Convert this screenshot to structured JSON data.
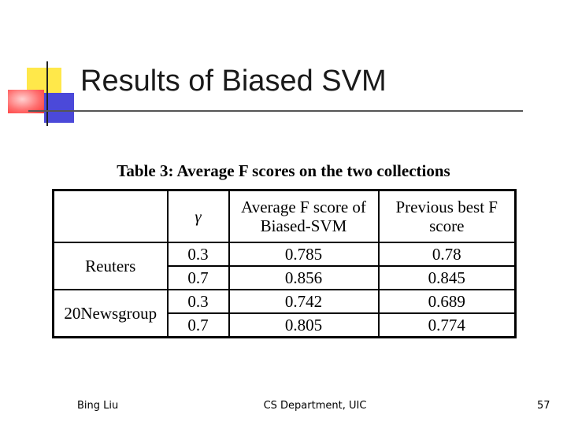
{
  "slide": {
    "title": "Results of Biased SVM"
  },
  "table": {
    "caption": "Table 3: Average F scores on the two collections",
    "headers": {
      "group": "",
      "gamma": "γ",
      "avg_f": "Average F score of Biased-SVM",
      "prev_best": "Previous best F score"
    },
    "groups": [
      {
        "name": "Reuters",
        "rows": [
          {
            "gamma": "0.3",
            "avg_f": "0.785",
            "prev_best": "0.78"
          },
          {
            "gamma": "0.7",
            "avg_f": "0.856",
            "prev_best": "0.845"
          }
        ]
      },
      {
        "name": "20Newsgroup",
        "rows": [
          {
            "gamma": "0.3",
            "avg_f": "0.742",
            "prev_best": "0.689"
          },
          {
            "gamma": "0.7",
            "avg_f": "0.805",
            "prev_best": "0.774"
          }
        ]
      }
    ]
  },
  "footer": {
    "author": "Bing Liu",
    "department": "CS Department, UIC",
    "page_number": "57"
  },
  "colors": {
    "logo_yellow": "#ffe84a",
    "logo_blue": "#4b49d9",
    "logo_red": "#ff3535"
  }
}
